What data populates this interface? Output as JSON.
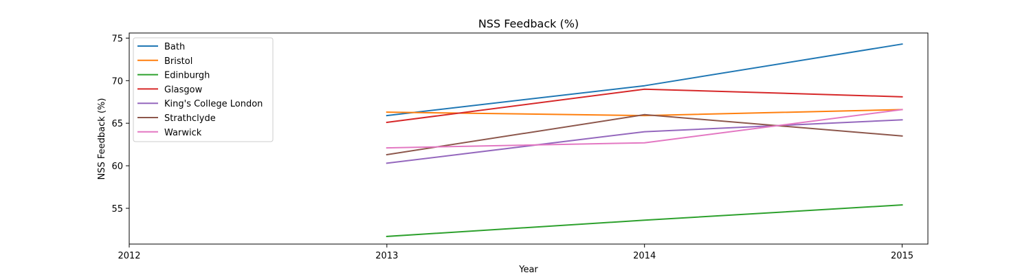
{
  "chart_data": {
    "type": "line",
    "title": "NSS Feedback (%)",
    "xlabel": "Year",
    "ylabel": "NSS Feedback (%)",
    "xlim": [
      2012,
      2015.1
    ],
    "ylim": [
      50.8,
      75.6
    ],
    "xticks": [
      2012,
      2013,
      2014,
      2015
    ],
    "yticks": [
      55,
      60,
      65,
      70,
      75
    ],
    "grid": false,
    "legend_position": "upper-left",
    "series": [
      {
        "name": "Bath",
        "color": "#1f77b4",
        "x": [
          2013,
          2014,
          2015
        ],
        "y": [
          65.9,
          69.4,
          74.3
        ]
      },
      {
        "name": "Bristol",
        "color": "#ff7f0e",
        "x": [
          2013,
          2014,
          2015
        ],
        "y": [
          66.3,
          65.9,
          66.6
        ]
      },
      {
        "name": "Edinburgh",
        "color": "#2ca02c",
        "x": [
          2013,
          2014,
          2015
        ],
        "y": [
          51.7,
          53.6,
          55.4
        ]
      },
      {
        "name": "Glasgow",
        "color": "#d62728",
        "x": [
          2013,
          2014,
          2015
        ],
        "y": [
          65.1,
          69.0,
          68.1
        ]
      },
      {
        "name": "King's College London",
        "color": "#9467bd",
        "x": [
          2013,
          2014,
          2015
        ],
        "y": [
          60.3,
          64.0,
          65.4
        ]
      },
      {
        "name": "Strathclyde",
        "color": "#8c564b",
        "x": [
          2013,
          2014,
          2015
        ],
        "y": [
          61.3,
          66.0,
          63.5
        ]
      },
      {
        "name": "Warwick",
        "color": "#e377c2",
        "x": [
          2013,
          2014,
          2015
        ],
        "y": [
          62.1,
          62.7,
          66.6
        ]
      }
    ]
  }
}
